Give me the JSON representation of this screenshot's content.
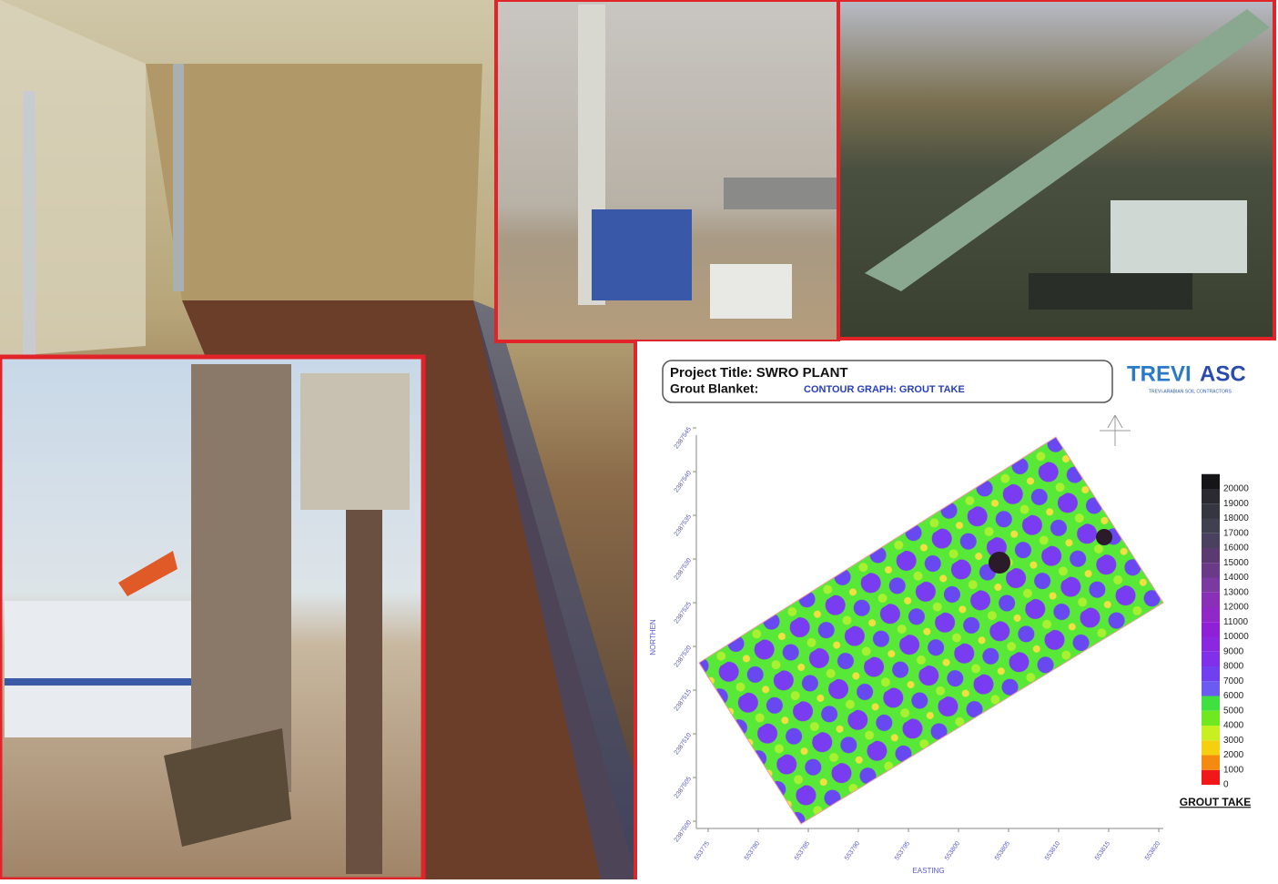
{
  "header": {
    "project_title": "Project Title: SWRO PLANT",
    "grout_blanket_label": "Grout Blanket:",
    "grout_blanket_value": "CONTOUR GRAPH: GROUT TAKE"
  },
  "logo": {
    "name_1": "TREVI",
    "name_2": "ASC",
    "tagline": "TREVI-ARABIAN SOIL CONTRACTORS"
  },
  "contour_graph": {
    "y_axis_label": "NORTHEN",
    "x_axis_label": "EASTING",
    "x_ticks": [
      553775,
      553780,
      553785,
      553790,
      553795,
      553800,
      553805,
      553810,
      553815,
      553820
    ],
    "y_ticks": [
      2387500,
      2387505,
      2387510,
      2387515,
      2387520,
      2387525,
      2387530,
      2387535,
      2387540,
      2387545
    ],
    "legend": {
      "title": "GROUT TAKE",
      "levels": [
        0,
        1000,
        2000,
        3000,
        4000,
        5000,
        6000,
        7000,
        8000,
        9000,
        10000,
        11000,
        12000,
        13000,
        14000,
        15000,
        16000,
        17000,
        18000,
        19000,
        20000
      ],
      "colors": [
        "#f01818",
        "#f58a10",
        "#f5d010",
        "#c8f020",
        "#70e820",
        "#40e040",
        "#6a5cf0",
        "#7040f0",
        "#8030e8",
        "#8a28e0",
        "#9020d8",
        "#9028c8",
        "#8a30b8",
        "#7a3aa0",
        "#6a3a88",
        "#5a3a70",
        "#4a4060",
        "#404050",
        "#363640",
        "#2a2a30",
        "#151518"
      ]
    }
  }
}
